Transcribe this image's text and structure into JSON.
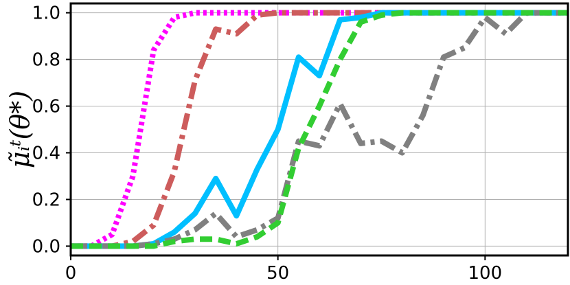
{
  "chart_data": {
    "type": "line",
    "title": "",
    "xlabel": "",
    "ylabel": "μ̃ᵢᵗ(θ*)",
    "xlim": [
      0,
      120
    ],
    "ylim": [
      -0.04,
      1.04
    ],
    "x_ticks": [
      0,
      50,
      100
    ],
    "x_tick_labels": [
      "0",
      "50",
      "100"
    ],
    "y_ticks": [
      0.0,
      0.2,
      0.4,
      0.6,
      0.8,
      1.0
    ],
    "y_tick_labels": [
      "0.0",
      "0.2",
      "0.4",
      "0.6",
      "0.8",
      "1.0"
    ],
    "grid": true,
    "legend": "none",
    "series": [
      {
        "color": "#ff00ff",
        "style": "dotted",
        "x": [
          0,
          5,
          10,
          15,
          20,
          25,
          30,
          35,
          40,
          45,
          50,
          55,
          60,
          65,
          70,
          75,
          80,
          85,
          90,
          95,
          100,
          105,
          110,
          115,
          120
        ],
        "y": [
          0.0,
          0.0,
          0.05,
          0.3,
          0.84,
          0.98,
          1.0,
          1.0,
          1.0,
          1.0,
          1.0,
          1.0,
          1.0,
          1.0,
          1.0,
          1.0,
          1.0,
          1.0,
          1.0,
          1.0,
          1.0,
          1.0,
          1.0,
          1.0,
          1.0
        ]
      },
      {
        "color": "#cd5c5c",
        "style": "dashdot",
        "x": [
          0,
          5,
          10,
          15,
          20,
          25,
          30,
          35,
          40,
          45,
          50,
          55,
          60,
          65,
          70,
          75,
          80,
          85,
          90,
          95,
          100,
          105,
          110,
          115,
          120
        ],
        "y": [
          0.0,
          0.0,
          0.0,
          0.02,
          0.09,
          0.32,
          0.71,
          0.93,
          0.91,
          0.99,
          1.0,
          1.0,
          1.0,
          1.0,
          1.0,
          1.0,
          1.0,
          1.0,
          1.0,
          1.0,
          1.0,
          1.0,
          1.0,
          1.0,
          1.0
        ]
      },
      {
        "color": "#00bfff",
        "style": "solid",
        "x": [
          0,
          5,
          10,
          15,
          20,
          25,
          30,
          35,
          40,
          45,
          50,
          55,
          60,
          65,
          70,
          75,
          80,
          85,
          90,
          95,
          100,
          105,
          110,
          115,
          120
        ],
        "y": [
          0.0,
          0.0,
          0.0,
          0.0,
          0.01,
          0.06,
          0.14,
          0.29,
          0.13,
          0.33,
          0.5,
          0.81,
          0.73,
          0.97,
          0.98,
          1.0,
          1.0,
          1.0,
          1.0,
          1.0,
          1.0,
          1.0,
          1.0,
          1.0,
          1.0
        ]
      },
      {
        "color": "#808080",
        "style": "dashdot",
        "x": [
          0,
          5,
          10,
          15,
          20,
          25,
          30,
          35,
          40,
          45,
          50,
          55,
          60,
          65,
          70,
          75,
          80,
          85,
          90,
          95,
          100,
          105,
          110,
          115,
          120
        ],
        "y": [
          0.0,
          0.0,
          0.0,
          0.0,
          0.01,
          0.03,
          0.07,
          0.14,
          0.04,
          0.07,
          0.12,
          0.45,
          0.43,
          0.61,
          0.44,
          0.45,
          0.4,
          0.56,
          0.81,
          0.85,
          0.98,
          0.91,
          1.0,
          1.0,
          1.0
        ]
      },
      {
        "color": "#32cd32",
        "style": "dashed",
        "x": [
          0,
          5,
          10,
          15,
          20,
          25,
          30,
          35,
          40,
          45,
          50,
          55,
          60,
          65,
          70,
          75,
          80,
          85,
          90,
          95,
          100,
          105,
          110,
          115,
          120
        ],
        "y": [
          0.0,
          0.0,
          0.0,
          0.0,
          0.0,
          0.02,
          0.03,
          0.03,
          0.01,
          0.04,
          0.1,
          0.42,
          0.6,
          0.8,
          0.96,
          0.99,
          1.0,
          1.0,
          1.0,
          1.0,
          1.0,
          1.0,
          1.0,
          1.0,
          1.0
        ]
      }
    ]
  }
}
